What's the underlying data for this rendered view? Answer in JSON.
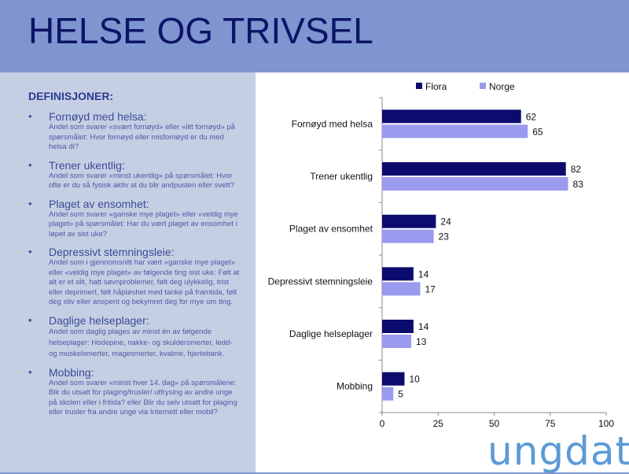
{
  "page": {
    "title": "HELSE OG TRIVSEL",
    "definitions_heading": "DEFINISJONER:",
    "logo_text": "ungdata"
  },
  "definitions": [
    {
      "term": "Fornøyd med helsa:",
      "text": "Andel som svarer «svært fornøyd» eller «litt fornøyd» på spørsmålet: Hvor fornøyd eller misfornøyd er du med helsa di?"
    },
    {
      "term": "Trener ukentlig:",
      "text": "Andel som svarer «minst ukentlig» på spørsmålet: Hvor ofte er du så fysisk aktiv at du blir andpusten eller svett?"
    },
    {
      "term": "Plaget av ensomhet:",
      "text": "Andel som svarer «ganske mye plaget» eller «veldig mye plaget» på spørsmålet: Har du vært plaget av ensomhet i løpet av sist uke?"
    },
    {
      "term": "Depressivt stemningsleie:",
      "text": "Andel som i gjennomsnitt har vært «ganske mye plaget» eller «veldig mye plaget» av følgende ting sist uke: Følt at alt er et slit, hatt søvnproblemer, følt deg ulykkelig, trist eller deprimert, følt håpløshet med tanke på framtida, følt deg stiv eller anspent og bekymret deg for mye om ting."
    },
    {
      "term": "Daglige helseplager:",
      "text": "Andel som daglig plages av minst én av følgende helseplager: Hodepine, nakke- og skuldersmerter, ledd- og muskelsmerter, magesmerter, kvalme, hjertebank."
    },
    {
      "term": "Mobbing:",
      "text": "Andel som svarer «minst hver 14. dag» på spørsmålene: Blir du utsatt for plaging/trusler/ utfrysing av andre unge på skolen eller i fritida? eller Blir du selv utsatt for plaging eller trusler fra andre unge via Internett eller mobil?"
    }
  ],
  "chart_data": {
    "type": "bar",
    "orientation": "horizontal",
    "categories": [
      "Fornøyd med helsa",
      "Trener ukentlig",
      "Plaget av ensomhet",
      "Depressivt stemningsleie",
      "Daglige helseplager",
      "Mobbing"
    ],
    "series": [
      {
        "name": "Flora",
        "values": [
          62,
          82,
          24,
          14,
          14,
          10
        ],
        "color": "#0c0c6e"
      },
      {
        "name": "Norge",
        "values": [
          65,
          83,
          23,
          17,
          13,
          5
        ],
        "color": "#9a9aee"
      }
    ],
    "xlim": [
      0,
      100
    ],
    "xticks": [
      0,
      25,
      50,
      75,
      100
    ],
    "legend": "top",
    "grid": false
  }
}
